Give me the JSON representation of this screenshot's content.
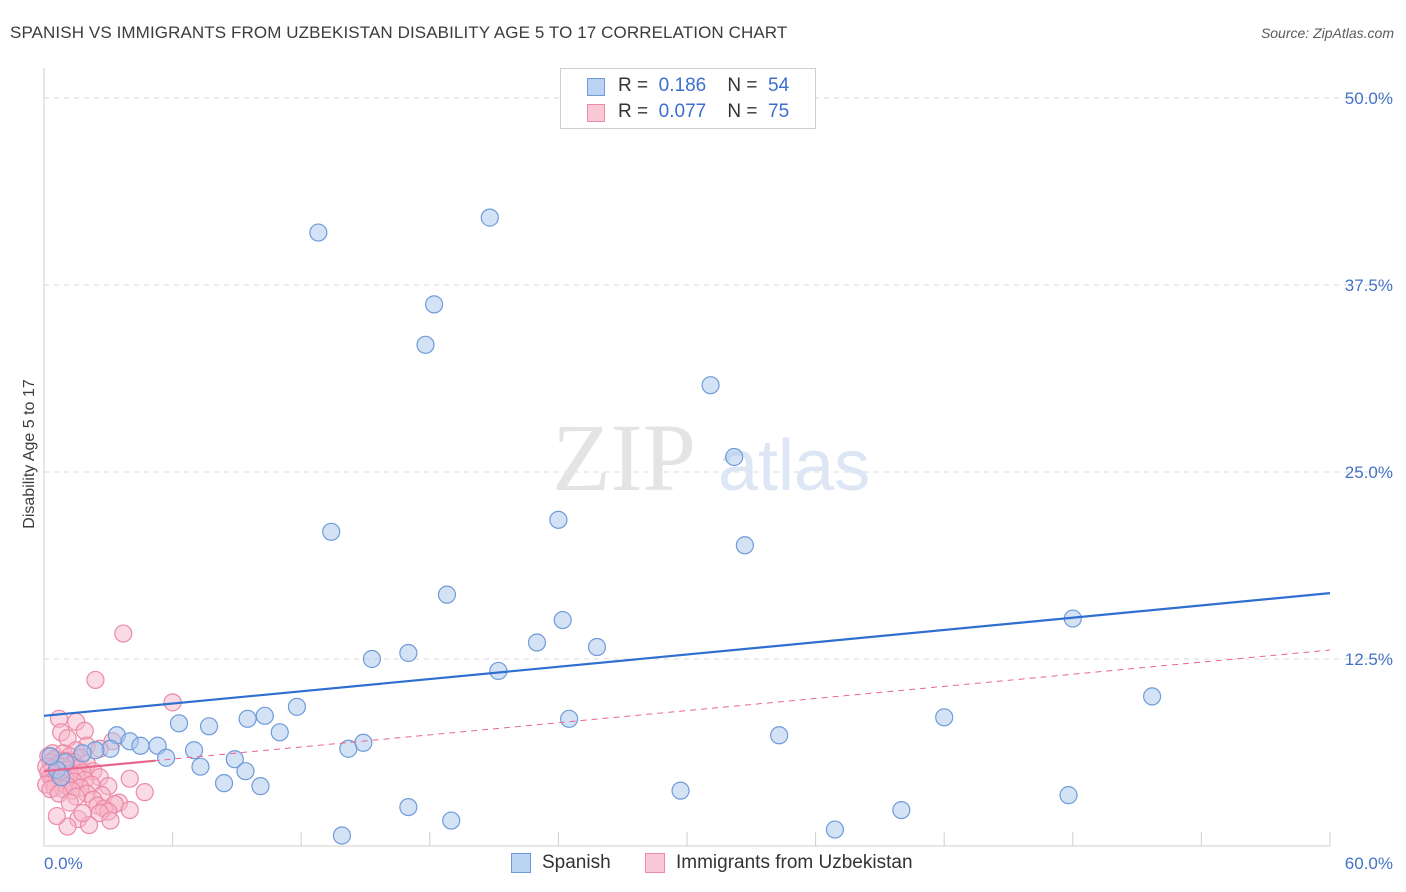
{
  "title": "SPANISH VS IMMIGRANTS FROM UZBEKISTAN DISABILITY AGE 5 TO 17 CORRELATION CHART",
  "source": "Source: ZipAtlas.com",
  "watermark": {
    "zip": "ZIP",
    "atlas": "atlas"
  },
  "legend_top": {
    "rows": [
      {
        "r_label": "R =",
        "r_value": "0.186",
        "n_label": "N =",
        "n_value": "54"
      },
      {
        "r_label": "R =",
        "r_value": "0.077",
        "n_label": "N =",
        "n_value": "75"
      }
    ]
  },
  "legend_bottom": {
    "series1": "Spanish",
    "series2": "Immigrants from Uzbekistan"
  },
  "colors": {
    "blue_fill": "#a9c6ee",
    "blue_stroke": "#6f9bd8",
    "blue_line": "#2f6fd0",
    "pink_fill": "#f6b6c9",
    "pink_stroke": "#ec8aa8",
    "pink_line": "#e8668e",
    "grid": "#d9d9d9",
    "tick_text": "#4472c4"
  },
  "chart_data": {
    "type": "scatter",
    "title": "SPANISH VS IMMIGRANTS FROM UZBEKISTAN DISABILITY AGE 5 TO 17 CORRELATION CHART",
    "xlabel": "",
    "ylabel": "Disability Age 5 to 17",
    "xlim": [
      0,
      60
    ],
    "ylim": [
      0,
      52
    ],
    "x_tick_labels": [
      "0.0%",
      "60.0%"
    ],
    "y_ticks": [
      12.5,
      25.0,
      37.5,
      50.0
    ],
    "y_tick_labels": [
      "12.5%",
      "25.0%",
      "37.5%",
      "50.0%"
    ],
    "grid": "horizontal dashed",
    "legend_position": "top-center",
    "series": [
      {
        "name": "Spanish",
        "R": 0.186,
        "N": 54,
        "trend": {
          "x": [
            0,
            60
          ],
          "y": [
            8.7,
            16.9
          ],
          "style": "solid"
        },
        "points": [
          [
            12.8,
            41.0
          ],
          [
            20.8,
            42.0
          ],
          [
            18.2,
            36.2
          ],
          [
            17.8,
            33.5
          ],
          [
            31.1,
            30.8
          ],
          [
            32.2,
            26.0
          ],
          [
            13.4,
            21.0
          ],
          [
            24.0,
            21.8
          ],
          [
            32.7,
            20.1
          ],
          [
            18.8,
            16.8
          ],
          [
            24.2,
            15.1
          ],
          [
            48.0,
            15.2
          ],
          [
            23.0,
            13.6
          ],
          [
            25.8,
            13.3
          ],
          [
            15.3,
            12.5
          ],
          [
            17.0,
            12.9
          ],
          [
            21.2,
            11.7
          ],
          [
            51.7,
            10.0
          ],
          [
            11.8,
            9.3
          ],
          [
            10.3,
            8.7
          ],
          [
            9.5,
            8.5
          ],
          [
            6.3,
            8.2
          ],
          [
            7.7,
            8.0
          ],
          [
            11.0,
            7.6
          ],
          [
            24.5,
            8.5
          ],
          [
            42.0,
            8.6
          ],
          [
            34.3,
            7.4
          ],
          [
            3.4,
            7.4
          ],
          [
            4.0,
            7.0
          ],
          [
            5.3,
            6.7
          ],
          [
            14.9,
            6.9
          ],
          [
            14.2,
            6.5
          ],
          [
            3.1,
            6.5
          ],
          [
            7.0,
            6.4
          ],
          [
            2.4,
            6.4
          ],
          [
            4.5,
            6.7
          ],
          [
            1.8,
            6.2
          ],
          [
            8.9,
            5.8
          ],
          [
            5.7,
            5.9
          ],
          [
            1.0,
            5.6
          ],
          [
            7.3,
            5.3
          ],
          [
            9.4,
            5.0
          ],
          [
            0.6,
            5.1
          ],
          [
            0.3,
            6.0
          ],
          [
            8.4,
            4.2
          ],
          [
            10.1,
            4.0
          ],
          [
            29.7,
            3.7
          ],
          [
            47.8,
            3.4
          ],
          [
            17.0,
            2.6
          ],
          [
            40.0,
            2.4
          ],
          [
            19.0,
            1.7
          ],
          [
            36.9,
            1.1
          ],
          [
            13.9,
            0.7
          ],
          [
            0.8,
            4.6
          ]
        ]
      },
      {
        "name": "Immigrants from Uzbekistan",
        "R": 0.077,
        "N": 75,
        "trend": {
          "x": [
            0,
            60
          ],
          "y": [
            5.0,
            13.1
          ],
          "style": "dashed",
          "solid_until_x": 5.2
        },
        "points": [
          [
            3.7,
            14.2
          ],
          [
            2.4,
            11.1
          ],
          [
            6.0,
            9.6
          ],
          [
            0.7,
            8.5
          ],
          [
            1.5,
            8.3
          ],
          [
            1.9,
            7.7
          ],
          [
            0.8,
            7.6
          ],
          [
            1.1,
            7.2
          ],
          [
            3.2,
            7.0
          ],
          [
            2.0,
            6.7
          ],
          [
            2.6,
            6.5
          ],
          [
            1.5,
            6.4
          ],
          [
            0.4,
            6.2
          ],
          [
            0.9,
            6.2
          ],
          [
            1.2,
            6.0
          ],
          [
            0.2,
            6.0
          ],
          [
            1.7,
            5.9
          ],
          [
            0.5,
            5.8
          ],
          [
            1.0,
            5.7
          ],
          [
            1.4,
            5.6
          ],
          [
            0.3,
            5.6
          ],
          [
            2.0,
            5.5
          ],
          [
            0.6,
            5.4
          ],
          [
            1.3,
            5.4
          ],
          [
            0.9,
            5.3
          ],
          [
            0.1,
            5.3
          ],
          [
            1.6,
            5.2
          ],
          [
            0.4,
            5.2
          ],
          [
            1.1,
            5.1
          ],
          [
            0.7,
            5.0
          ],
          [
            2.3,
            5.0
          ],
          [
            0.2,
            4.9
          ],
          [
            1.8,
            4.9
          ],
          [
            0.5,
            4.8
          ],
          [
            1.2,
            4.8
          ],
          [
            0.9,
            4.7
          ],
          [
            1.5,
            4.7
          ],
          [
            0.3,
            4.6
          ],
          [
            2.6,
            4.6
          ],
          [
            0.6,
            4.5
          ],
          [
            1.0,
            4.5
          ],
          [
            1.9,
            4.4
          ],
          [
            4.0,
            4.5
          ],
          [
            0.4,
            4.3
          ],
          [
            1.4,
            4.3
          ],
          [
            0.8,
            4.2
          ],
          [
            2.2,
            4.1
          ],
          [
            0.1,
            4.1
          ],
          [
            1.1,
            4.0
          ],
          [
            3.0,
            4.0
          ],
          [
            0.5,
            3.9
          ],
          [
            1.7,
            3.9
          ],
          [
            0.9,
            3.8
          ],
          [
            0.3,
            3.8
          ],
          [
            1.3,
            3.7
          ],
          [
            4.7,
            3.6
          ],
          [
            2.0,
            3.5
          ],
          [
            0.7,
            3.5
          ],
          [
            2.7,
            3.4
          ],
          [
            1.5,
            3.3
          ],
          [
            2.3,
            3.1
          ],
          [
            1.2,
            2.9
          ],
          [
            3.5,
            2.9
          ],
          [
            2.5,
            2.7
          ],
          [
            3.3,
            2.8
          ],
          [
            2.8,
            2.5
          ],
          [
            4.0,
            2.4
          ],
          [
            3.0,
            2.3
          ],
          [
            2.6,
            2.2
          ],
          [
            1.6,
            1.8
          ],
          [
            3.1,
            1.7
          ],
          [
            2.1,
            1.4
          ],
          [
            1.1,
            1.3
          ],
          [
            0.6,
            2.0
          ],
          [
            1.8,
            2.2
          ]
        ]
      }
    ]
  }
}
